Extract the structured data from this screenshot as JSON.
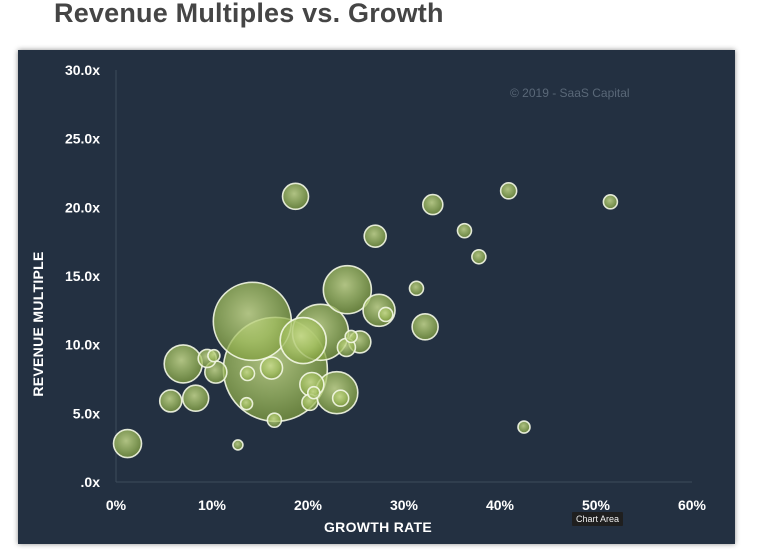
{
  "page_title": "Revenue Multiples vs. Growth",
  "copyright": "© 2019 - SaaS Capital",
  "tooltip": "Chart Area",
  "chart_data": {
    "type": "scatter",
    "title": "",
    "xlabel": "GROWTH RATE",
    "ylabel": "REVENUE MULTIPLE",
    "xlim": [
      0,
      60
    ],
    "ylim": [
      0,
      30
    ],
    "x_tick_labels": [
      "0%",
      "10%",
      "20%",
      "30%",
      "40%",
      "50%",
      "60%"
    ],
    "y_tick_labels": [
      ".0x",
      "5.0x",
      "10.0x",
      "15.0x",
      "20.0x",
      "25.0x",
      "30.0x"
    ],
    "grid": false,
    "legend": "none",
    "bubble_color": "#a9c46a",
    "points": [
      {
        "x": 1.2,
        "y": 2.8,
        "size": 14
      },
      {
        "x": 5.7,
        "y": 5.9,
        "size": 11
      },
      {
        "x": 8.3,
        "y": 6.1,
        "size": 13
      },
      {
        "x": 7.0,
        "y": 8.6,
        "size": 19
      },
      {
        "x": 9.5,
        "y": 9.0,
        "size": 9
      },
      {
        "x": 10.2,
        "y": 9.2,
        "size": 6
      },
      {
        "x": 10.4,
        "y": 8.0,
        "size": 11
      },
      {
        "x": 12.7,
        "y": 2.7,
        "size": 5
      },
      {
        "x": 13.6,
        "y": 5.7,
        "size": 6
      },
      {
        "x": 14.2,
        "y": 11.7,
        "size": 39
      },
      {
        "x": 13.7,
        "y": 7.9,
        "size": 7
      },
      {
        "x": 16.6,
        "y": 8.2,
        "size": 52
      },
      {
        "x": 16.2,
        "y": 8.3,
        "size": 11
      },
      {
        "x": 16.5,
        "y": 4.5,
        "size": 7
      },
      {
        "x": 18.7,
        "y": 20.8,
        "size": 13
      },
      {
        "x": 19.5,
        "y": 10.3,
        "size": 23
      },
      {
        "x": 20.4,
        "y": 7.1,
        "size": 12
      },
      {
        "x": 20.2,
        "y": 5.8,
        "size": 8
      },
      {
        "x": 20.6,
        "y": 6.5,
        "size": 6
      },
      {
        "x": 21.3,
        "y": 10.9,
        "size": 28
      },
      {
        "x": 23.0,
        "y": 6.5,
        "size": 21
      },
      {
        "x": 23.4,
        "y": 6.1,
        "size": 8
      },
      {
        "x": 24.0,
        "y": 9.8,
        "size": 9
      },
      {
        "x": 24.5,
        "y": 10.6,
        "size": 6
      },
      {
        "x": 24.1,
        "y": 14.0,
        "size": 24
      },
      {
        "x": 25.4,
        "y": 10.2,
        "size": 11
      },
      {
        "x": 27.0,
        "y": 17.9,
        "size": 11
      },
      {
        "x": 27.4,
        "y": 12.5,
        "size": 16
      },
      {
        "x": 28.1,
        "y": 12.2,
        "size": 7
      },
      {
        "x": 31.3,
        "y": 14.1,
        "size": 7
      },
      {
        "x": 32.2,
        "y": 11.3,
        "size": 13
      },
      {
        "x": 33.0,
        "y": 20.2,
        "size": 10
      },
      {
        "x": 36.3,
        "y": 18.3,
        "size": 7
      },
      {
        "x": 37.8,
        "y": 16.4,
        "size": 7
      },
      {
        "x": 40.9,
        "y": 21.2,
        "size": 8
      },
      {
        "x": 42.5,
        "y": 4.0,
        "size": 6
      },
      {
        "x": 51.5,
        "y": 20.4,
        "size": 7
      }
    ]
  }
}
